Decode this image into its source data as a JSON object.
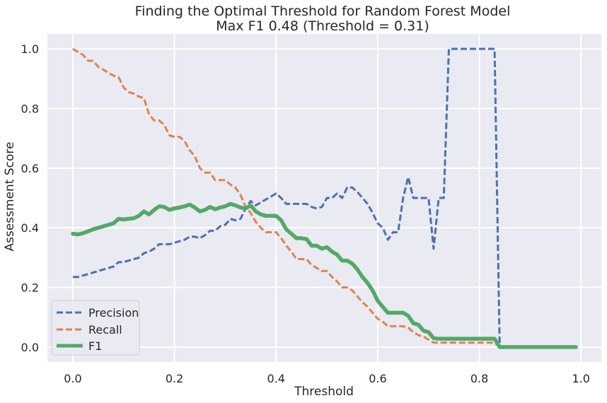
{
  "chart_data": {
    "type": "line",
    "title": "Finding the Optimal Threshold for Random Forest Model",
    "subtitle": "Max F1 0.48 (Threshold = 0.31)",
    "xlabel": "Threshold",
    "ylabel": "Assessment Score",
    "xlim": [
      -0.05,
      1.04
    ],
    "ylim": [
      -0.05,
      1.05
    ],
    "xticks": [
      "0.0",
      "0.2",
      "0.4",
      "0.6",
      "0.8",
      "1.0"
    ],
    "yticks": [
      "0.0",
      "0.2",
      "0.4",
      "0.6",
      "0.8",
      "1.0"
    ],
    "grid": true,
    "legend_position": "lower-left",
    "x": [
      0.0,
      0.01,
      0.02,
      0.03,
      0.04,
      0.05,
      0.06,
      0.07,
      0.08,
      0.09,
      0.1,
      0.11,
      0.12,
      0.13,
      0.14,
      0.15,
      0.16,
      0.17,
      0.18,
      0.19,
      0.2,
      0.21,
      0.22,
      0.23,
      0.24,
      0.25,
      0.26,
      0.27,
      0.28,
      0.29,
      0.3,
      0.31,
      0.32,
      0.33,
      0.34,
      0.35,
      0.36,
      0.37,
      0.38,
      0.39,
      0.4,
      0.41,
      0.42,
      0.43,
      0.44,
      0.45,
      0.46,
      0.47,
      0.48,
      0.49,
      0.5,
      0.51,
      0.52,
      0.53,
      0.54,
      0.55,
      0.56,
      0.57,
      0.58,
      0.59,
      0.6,
      0.61,
      0.62,
      0.63,
      0.64,
      0.65,
      0.66,
      0.67,
      0.68,
      0.69,
      0.7,
      0.71,
      0.72,
      0.73,
      0.74,
      0.75,
      0.76,
      0.77,
      0.78,
      0.79,
      0.8,
      0.81,
      0.82,
      0.83,
      0.84,
      0.85,
      0.86,
      0.87,
      0.88,
      0.89,
      0.9,
      0.91,
      0.92,
      0.93,
      0.94,
      0.95,
      0.96,
      0.97,
      0.98,
      0.99
    ],
    "series": [
      {
        "name": "Precision",
        "color": "#4c72b0",
        "style": "dashed",
        "values": [
          0.235,
          0.235,
          0.24,
          0.245,
          0.25,
          0.255,
          0.26,
          0.265,
          0.27,
          0.285,
          0.285,
          0.29,
          0.295,
          0.3,
          0.315,
          0.32,
          0.33,
          0.345,
          0.345,
          0.345,
          0.35,
          0.355,
          0.36,
          0.37,
          0.37,
          0.365,
          0.375,
          0.39,
          0.39,
          0.405,
          0.41,
          0.43,
          0.425,
          0.43,
          0.465,
          0.49,
          0.475,
          0.485,
          0.495,
          0.505,
          0.515,
          0.5,
          0.48,
          0.48,
          0.48,
          0.48,
          0.48,
          0.47,
          0.465,
          0.47,
          0.5,
          0.5,
          0.515,
          0.5,
          0.535,
          0.535,
          0.52,
          0.5,
          0.48,
          0.45,
          0.415,
          0.4,
          0.36,
          0.385,
          0.385,
          0.5,
          0.57,
          0.5,
          0.5,
          0.5,
          0.5,
          0.33,
          0.5,
          0.5,
          1.0,
          1.0,
          1.0,
          1.0,
          1.0,
          1.0,
          1.0,
          1.0,
          1.0,
          1.0,
          0.0,
          0.0,
          0.0,
          0.0,
          0.0,
          0.0,
          0.0,
          0.0,
          0.0,
          0.0,
          0.0,
          0.0,
          0.0,
          0.0,
          0.0,
          0.0
        ]
      },
      {
        "name": "Recall",
        "color": "#dd8452",
        "style": "dashed",
        "values": [
          1.0,
          0.99,
          0.98,
          0.96,
          0.96,
          0.94,
          0.93,
          0.92,
          0.91,
          0.905,
          0.87,
          0.855,
          0.85,
          0.84,
          0.835,
          0.78,
          0.76,
          0.76,
          0.745,
          0.71,
          0.705,
          0.705,
          0.69,
          0.66,
          0.64,
          0.6,
          0.585,
          0.585,
          0.56,
          0.56,
          0.56,
          0.545,
          0.535,
          0.51,
          0.47,
          0.45,
          0.42,
          0.4,
          0.385,
          0.385,
          0.385,
          0.365,
          0.34,
          0.32,
          0.295,
          0.295,
          0.295,
          0.275,
          0.265,
          0.255,
          0.255,
          0.235,
          0.22,
          0.2,
          0.2,
          0.19,
          0.17,
          0.15,
          0.135,
          0.115,
          0.095,
          0.085,
          0.07,
          0.07,
          0.07,
          0.07,
          0.065,
          0.05,
          0.04,
          0.035,
          0.025,
          0.015,
          0.015,
          0.015,
          0.015,
          0.015,
          0.015,
          0.015,
          0.015,
          0.015,
          0.015,
          0.015,
          0.015,
          0.015,
          0.0,
          0.0,
          0.0,
          0.0,
          0.0,
          0.0,
          0.0,
          0.0,
          0.0,
          0.0,
          0.0,
          0.0,
          0.0,
          0.0,
          0.0,
          0.0
        ]
      },
      {
        "name": "F1",
        "color": "#55a868",
        "style": "solid",
        "values": [
          0.38,
          0.378,
          0.382,
          0.388,
          0.395,
          0.4,
          0.405,
          0.41,
          0.415,
          0.43,
          0.428,
          0.43,
          0.432,
          0.44,
          0.455,
          0.445,
          0.46,
          0.472,
          0.47,
          0.46,
          0.465,
          0.468,
          0.472,
          0.478,
          0.468,
          0.455,
          0.46,
          0.47,
          0.462,
          0.468,
          0.472,
          0.48,
          0.475,
          0.468,
          0.465,
          0.475,
          0.455,
          0.445,
          0.44,
          0.44,
          0.44,
          0.425,
          0.395,
          0.38,
          0.365,
          0.365,
          0.362,
          0.34,
          0.34,
          0.33,
          0.335,
          0.32,
          0.31,
          0.29,
          0.29,
          0.28,
          0.26,
          0.235,
          0.215,
          0.19,
          0.155,
          0.135,
          0.115,
          0.115,
          0.115,
          0.115,
          0.105,
          0.08,
          0.075,
          0.055,
          0.05,
          0.03,
          0.028,
          0.028,
          0.028,
          0.028,
          0.028,
          0.028,
          0.028,
          0.028,
          0.028,
          0.028,
          0.028,
          0.028,
          0.0,
          0.0,
          0.0,
          0.0,
          0.0,
          0.0,
          0.0,
          0.0,
          0.0,
          0.0,
          0.0,
          0.0,
          0.0,
          0.0,
          0.0,
          0.0
        ]
      }
    ]
  },
  "colors": {
    "plot_background": "#eaeaf2",
    "grid": "#ffffff",
    "text": "#262626"
  }
}
